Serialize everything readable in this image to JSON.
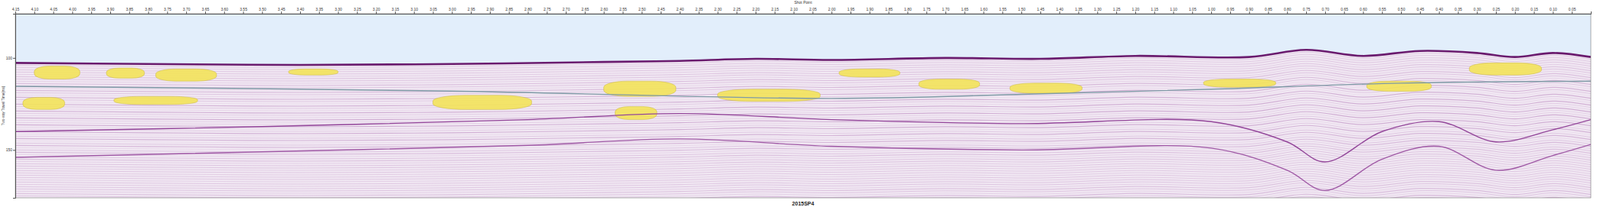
{
  "chart_data": {
    "type": "seismic",
    "title": "2015SP4",
    "x_label": "Shot Point",
    "y_label": "Two-way Travel Time(ms)",
    "xlim": [
      4.15,
      0.0
    ],
    "ylim": [
      76,
      176
    ],
    "xticks": [
      4.15,
      {
        "value": 4.1,
        "label": "4.10"
      },
      4.05,
      {
        "value": 4.0,
        "label": "4.00"
      },
      3.95,
      {
        "value": 3.9,
        "label": "3.90"
      },
      3.85,
      {
        "value": 3.8,
        "label": "3.80"
      },
      3.75,
      {
        "value": 3.7,
        "label": "3.70"
      },
      3.65,
      {
        "value": 3.6,
        "label": "3.60"
      },
      3.55,
      {
        "value": 3.5,
        "label": "3.50"
      },
      3.45,
      {
        "value": 3.4,
        "label": "3.40"
      },
      3.35,
      {
        "value": 3.3,
        "label": "3.30"
      },
      3.25,
      {
        "value": 3.2,
        "label": "3.20"
      },
      3.15,
      {
        "value": 3.1,
        "label": "3.10"
      },
      3.05,
      {
        "value": 3.0,
        "label": "3.00"
      },
      2.95,
      {
        "value": 2.9,
        "label": "2.90"
      },
      2.85,
      {
        "value": 2.8,
        "label": "2.80"
      },
      2.75,
      {
        "value": 2.7,
        "label": "2.70"
      },
      2.65,
      {
        "value": 2.6,
        "label": "2.60"
      },
      2.55,
      {
        "value": 2.5,
        "label": "2.50"
      },
      2.45,
      {
        "value": 2.4,
        "label": "2.40"
      },
      2.35,
      {
        "value": 2.3,
        "label": "2.30"
      },
      2.25,
      {
        "value": 2.2,
        "label": "2.20"
      },
      2.15,
      {
        "value": 2.1,
        "label": "2.10"
      },
      2.05,
      {
        "value": 2.0,
        "label": "2.00"
      },
      1.95,
      {
        "value": 1.9,
        "label": "1.90"
      },
      1.85,
      {
        "value": 1.8,
        "label": "1.80"
      },
      1.75,
      {
        "value": 1.7,
        "label": "1.70"
      },
      1.65,
      {
        "value": 1.6,
        "label": "1.60"
      },
      1.55,
      {
        "value": 1.5,
        "label": "1.50"
      },
      1.45,
      {
        "value": 1.4,
        "label": "1.40"
      },
      1.35,
      {
        "value": 1.3,
        "label": "1.30"
      },
      1.25,
      {
        "value": 1.2,
        "label": "1.20"
      },
      1.15,
      {
        "value": 1.1,
        "label": "1.10"
      },
      1.05,
      {
        "value": 1.0,
        "label": "1.00"
      },
      0.95,
      {
        "value": 0.9,
        "label": "0.90"
      },
      0.85,
      {
        "value": 0.8,
        "label": "0.80"
      },
      0.75,
      {
        "value": 0.7,
        "label": "0.70"
      },
      0.65,
      {
        "value": 0.6,
        "label": "0.60"
      },
      0.55,
      {
        "value": 0.5,
        "label": "0.50"
      },
      0.45,
      {
        "value": 0.4,
        "label": "0.40"
      },
      0.35,
      {
        "value": 0.3,
        "label": "0.30"
      },
      0.25,
      {
        "value": 0.2,
        "label": "0.20"
      },
      0.15,
      {
        "value": 0.1,
        "label": "0.10"
      },
      0.05
    ],
    "yticks": [
      100,
      150
    ],
    "series": [
      {
        "color": "#6a1b6e",
        "x": [
          4.15,
          3.8,
          3.4,
          3.0,
          2.6,
          2.4,
          2.2,
          2.0,
          1.7,
          1.45,
          1.2,
          0.9,
          0.75,
          0.6,
          0.45,
          0.3,
          0.2,
          0.1,
          0.0
        ],
        "values": [
          102.7,
          103.3,
          103.8,
          103.3,
          102.2,
          101.6,
          100.5,
          101.1,
          100.0,
          100.5,
          98.9,
          99.5,
          95.6,
          98.9,
          96.2,
          97.3,
          99.5,
          97.3,
          99.5
        ]
      },
      {
        "color": "#7f9aa6",
        "x": [
          4.15,
          3.0,
          2.0,
          1.5,
          1.0,
          0.5,
          0.0
        ],
        "values": [
          115.4,
          118.0,
          122.0,
          119.8,
          117.0,
          113.7,
          112.6
        ]
      },
      {
        "color": "#93469a",
        "x": [
          4.15,
          3.5,
          2.8,
          2.4,
          2.0,
          1.5,
          1.0,
          0.8,
          0.7,
          0.55,
          0.4,
          0.25,
          0.1,
          0.0
        ],
        "values": [
          140.0,
          137.3,
          133.5,
          130.2,
          133.5,
          135.7,
          134.6,
          145.6,
          156.5,
          140.0,
          134.6,
          145.6,
          139.0,
          133.5
        ]
      },
      {
        "color": "#a05aa6",
        "x": [
          4.15,
          3.5,
          2.8,
          2.4,
          2.0,
          1.5,
          1.0,
          0.8,
          0.7,
          0.55,
          0.4,
          0.25,
          0.1,
          0.0
        ],
        "values": [
          154.0,
          151.0,
          147.5,
          144.0,
          148.0,
          150.0,
          149.0,
          161.0,
          172.0,
          155.0,
          148.0,
          161.0,
          153.0,
          147.0
        ]
      }
    ],
    "patches": {
      "color": "#f3e35a",
      "items": [
        {
          "x": [
            4.1,
            3.98
          ],
          "y": [
            104.4,
            111.5
          ]
        },
        {
          "x": [
            3.91,
            3.81
          ],
          "y": [
            105.5,
            111.0
          ]
        },
        {
          "x": [
            3.78,
            3.62
          ],
          "y": [
            106.0,
            112.6
          ]
        },
        {
          "x": [
            4.13,
            4.02
          ],
          "y": [
            121.4,
            128.0
          ]
        },
        {
          "x": [
            3.89,
            3.67
          ],
          "y": [
            120.9,
            125.3
          ]
        },
        {
          "x": [
            3.43,
            3.3
          ],
          "y": [
            106.0,
            109.3
          ]
        },
        {
          "x": [
            3.05,
            2.79
          ],
          "y": [
            120.3,
            128.0
          ]
        },
        {
          "x": [
            2.6,
            2.41
          ],
          "y": [
            112.6,
            120.9
          ]
        },
        {
          "x": [
            2.57,
            2.46
          ],
          "y": [
            126.4,
            133.5
          ]
        },
        {
          "x": [
            2.3,
            2.03
          ],
          "y": [
            117.0,
            123.6
          ]
        },
        {
          "x": [
            1.98,
            1.82
          ],
          "y": [
            106.0,
            110.4
          ]
        },
        {
          "x": [
            1.77,
            1.61
          ],
          "y": [
            111.5,
            117.0
          ]
        },
        {
          "x": [
            1.53,
            1.34
          ],
          "y": [
            113.7,
            119.2
          ]
        },
        {
          "x": [
            1.02,
            0.83
          ],
          "y": [
            111.5,
            115.9
          ]
        },
        {
          "x": [
            0.59,
            0.42
          ],
          "y": [
            112.6,
            118.1
          ]
        },
        {
          "x": [
            0.32,
            0.13
          ],
          "y": [
            102.7,
            109.3
          ]
        }
      ]
    }
  }
}
